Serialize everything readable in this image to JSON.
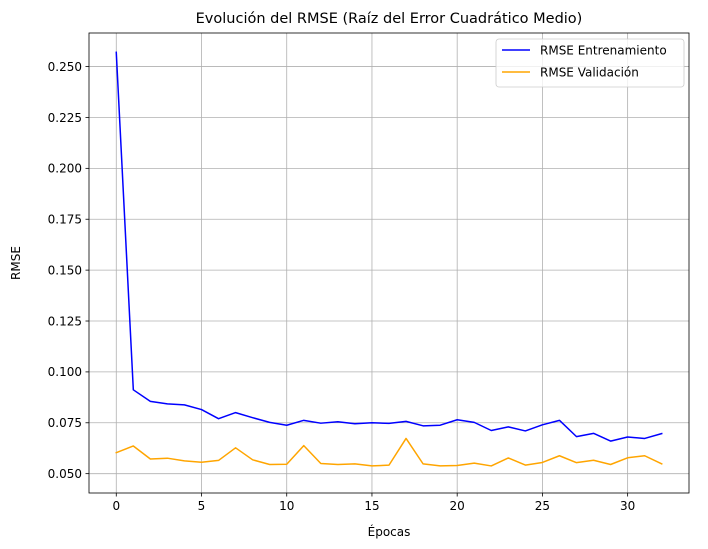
{
  "chart_data": {
    "type": "line",
    "title": "Evolución del RMSE (Raíz del Error Cuadrático Medio)",
    "xlabel": "Épocas",
    "ylabel": "RMSE",
    "xlim": [
      -1.6,
      33.6
    ],
    "ylim": [
      0.0405,
      0.2665
    ],
    "xticks": [
      0,
      5,
      10,
      15,
      20,
      25,
      30
    ],
    "xtick_labels": [
      "0",
      "5",
      "10",
      "15",
      "20",
      "25",
      "30"
    ],
    "yticks": [
      0.05,
      0.075,
      0.1,
      0.125,
      0.15,
      0.175,
      0.2,
      0.225,
      0.25
    ],
    "ytick_labels": [
      "0.050",
      "0.075",
      "0.100",
      "0.125",
      "0.150",
      "0.175",
      "0.200",
      "0.225",
      "0.250"
    ],
    "grid": true,
    "legend_position": "top-right",
    "x": [
      0,
      1,
      2,
      3,
      4,
      5,
      6,
      7,
      8,
      9,
      10,
      11,
      12,
      13,
      14,
      15,
      16,
      17,
      18,
      19,
      20,
      21,
      22,
      23,
      24,
      25,
      26,
      27,
      28,
      29,
      30,
      31,
      32
    ],
    "series": [
      {
        "name": "RMSE Entrenamiento",
        "color": "#0000ff",
        "values": [
          0.257,
          0.0912,
          0.0855,
          0.0843,
          0.0838,
          0.0815,
          0.077,
          0.08,
          0.0775,
          0.0752,
          0.0738,
          0.0762,
          0.0748,
          0.0755,
          0.0745,
          0.075,
          0.0747,
          0.0757,
          0.0735,
          0.0738,
          0.0765,
          0.0752,
          0.0712,
          0.073,
          0.071,
          0.074,
          0.0762,
          0.0682,
          0.0698,
          0.066,
          0.068,
          0.0673,
          0.0697
        ]
      },
      {
        "name": "RMSE Validación",
        "color": "#ffa500",
        "values": [
          0.0603,
          0.0636,
          0.0572,
          0.0576,
          0.0563,
          0.0556,
          0.0565,
          0.0627,
          0.0568,
          0.0545,
          0.0546,
          0.0638,
          0.055,
          0.0545,
          0.0548,
          0.0538,
          0.0542,
          0.0673,
          0.0548,
          0.0538,
          0.054,
          0.0552,
          0.0538,
          0.0577,
          0.0542,
          0.0555,
          0.0588,
          0.0554,
          0.0566,
          0.0545,
          0.0578,
          0.0588,
          0.0548
        ]
      }
    ]
  }
}
